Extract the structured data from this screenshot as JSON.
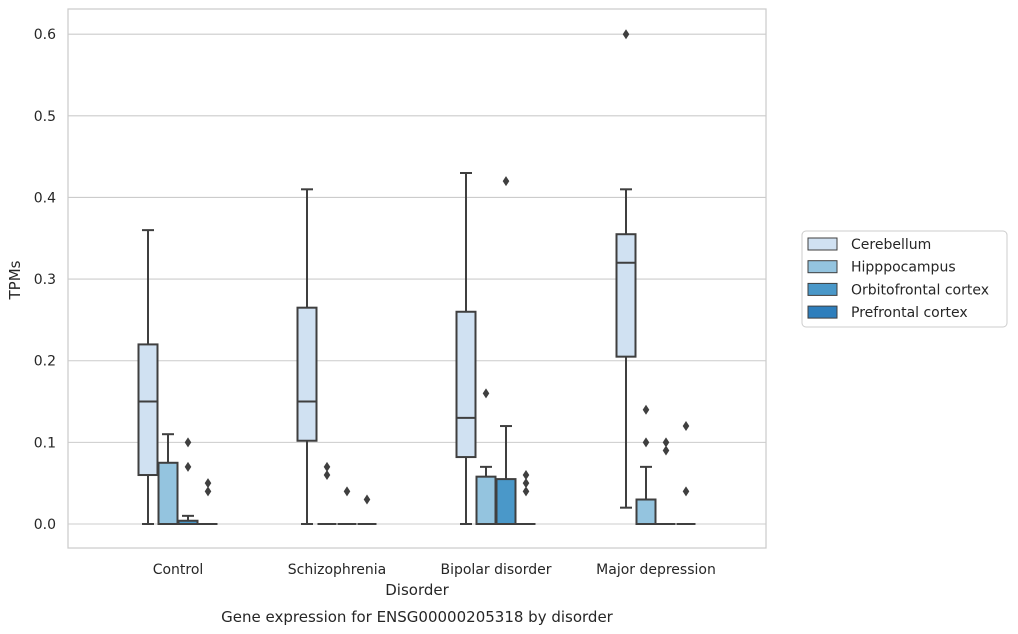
{
  "chart_data": {
    "type": "box",
    "title": "",
    "caption": "Gene expression for ENSG00000205318 by disorder",
    "xlabel": "Disorder",
    "ylabel": "TPMs",
    "ylim": [
      -0.03,
      0.63
    ],
    "yticks": [
      "0.0",
      "0.1",
      "0.2",
      "0.3",
      "0.4",
      "0.5",
      "0.6"
    ],
    "categories": [
      "Control",
      "Schizophrenia",
      "Bipolar disorder",
      "Major depression"
    ],
    "grid": true,
    "legend_position": "right",
    "series": [
      {
        "name": "Cerebellum",
        "color": "#d0e1f2",
        "boxes": [
          {
            "whislo": 0.0,
            "q1": 0.06,
            "med": 0.15,
            "q3": 0.22,
            "whishi": 0.36,
            "fliers": []
          },
          {
            "whislo": 0.0,
            "q1": 0.102,
            "med": 0.15,
            "q3": 0.265,
            "whishi": 0.41,
            "fliers": []
          },
          {
            "whislo": 0.0,
            "q1": 0.082,
            "med": 0.13,
            "q3": 0.26,
            "whishi": 0.43,
            "fliers": []
          },
          {
            "whislo": 0.02,
            "q1": 0.205,
            "med": 0.32,
            "q3": 0.355,
            "whishi": 0.41,
            "fliers": [
              0.6
            ]
          }
        ]
      },
      {
        "name": "Hipppocampus",
        "color": "#94c4df",
        "boxes": [
          {
            "whislo": 0.0,
            "q1": 0.0,
            "med": 0.0,
            "q3": 0.075,
            "whishi": 0.11,
            "fliers": []
          },
          {
            "whislo": 0.0,
            "q1": 0.0,
            "med": 0.0,
            "q3": 0.0,
            "whishi": 0.0,
            "fliers": [
              0.06,
              0.07
            ]
          },
          {
            "whislo": 0.0,
            "q1": 0.0,
            "med": 0.0,
            "q3": 0.058,
            "whishi": 0.07,
            "fliers": [
              0.16
            ]
          },
          {
            "whislo": 0.0,
            "q1": 0.0,
            "med": 0.0,
            "q3": 0.03,
            "whishi": 0.07,
            "fliers": [
              0.1,
              0.14
            ]
          }
        ]
      },
      {
        "name": "Orbitofrontal cortex",
        "color": "#4a98c9",
        "boxes": [
          {
            "whislo": 0.0,
            "q1": 0.0,
            "med": 0.0,
            "q3": 0.004,
            "whishi": 0.01,
            "fliers": [
              0.07,
              0.1
            ]
          },
          {
            "whislo": 0.0,
            "q1": 0.0,
            "med": 0.0,
            "q3": 0.0,
            "whishi": 0.0,
            "fliers": [
              0.04
            ]
          },
          {
            "whislo": 0.0,
            "q1": 0.0,
            "med": 0.0,
            "q3": 0.055,
            "whishi": 0.12,
            "fliers": [
              0.42
            ]
          },
          {
            "whislo": 0.0,
            "q1": 0.0,
            "med": 0.0,
            "q3": 0.0,
            "whishi": 0.0,
            "fliers": [
              0.09,
              0.1
            ]
          }
        ]
      },
      {
        "name": "Prefrontal cortex",
        "color": "#2e7ebc",
        "boxes": [
          {
            "whislo": 0.0,
            "q1": 0.0,
            "med": 0.0,
            "q3": 0.0,
            "whishi": 0.0,
            "fliers": [
              0.04,
              0.05
            ]
          },
          {
            "whislo": 0.0,
            "q1": 0.0,
            "med": 0.0,
            "q3": 0.0,
            "whishi": 0.0,
            "fliers": [
              0.03
            ]
          },
          {
            "whislo": 0.0,
            "q1": 0.0,
            "med": 0.0,
            "q3": 0.0,
            "whishi": 0.0,
            "fliers": [
              0.04,
              0.05,
              0.06
            ]
          },
          {
            "whislo": 0.0,
            "q1": 0.0,
            "med": 0.0,
            "q3": 0.0,
            "whishi": 0.0,
            "fliers": [
              0.04,
              0.12
            ]
          }
        ]
      }
    ]
  }
}
